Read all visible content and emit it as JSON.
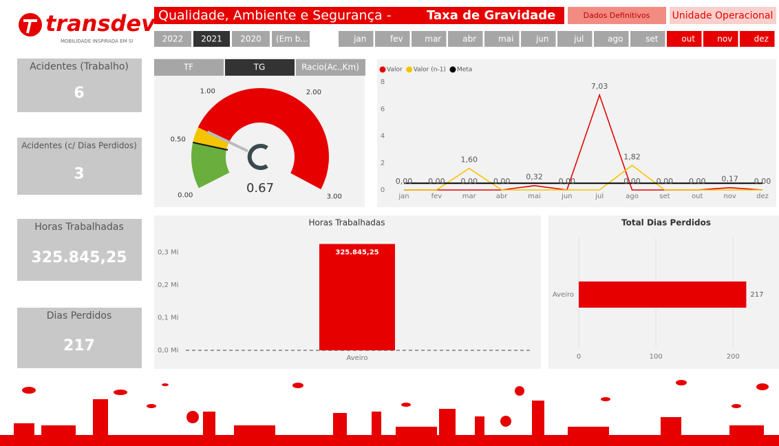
{
  "header": {
    "logo": "transdev",
    "tagline": "MOBILIDADE INSPIRADA EM SI",
    "title": "Qualidade, Ambiente e Segurança -",
    "subtitle": "Taxa de Gravidade",
    "status": "Dados Definitivos",
    "unit": "Unidade Operacional"
  },
  "years": [
    "2022",
    "2021",
    "2020",
    "(Em b..."
  ],
  "months": [
    "jan",
    "fev",
    "mar",
    "abr",
    "mai",
    "jun",
    "jul",
    "ago",
    "set",
    "out",
    "nov",
    "dez"
  ],
  "tabs": [
    "TF",
    "TG",
    "Racio(Ac.,Km)"
  ],
  "cards": [
    {
      "label": "Acidentes (Trabalho)",
      "value": "6"
    },
    {
      "label": "Acidentes (c/ Dias Perdidos)",
      "value": "3"
    },
    {
      "label": "Horas Trabalhadas",
      "value": "325.845,25"
    },
    {
      "label": "Dias Perdidos",
      "value": "217"
    }
  ],
  "chart_data": [
    {
      "type": "gauge",
      "value": 0.67,
      "target": 0.5,
      "range": [
        0,
        3
      ],
      "ticks": [
        {
          "value": 0,
          "label": "0.00"
        },
        {
          "value": 0.5,
          "label": "0.50"
        },
        {
          "value": 1,
          "label": "1.00"
        },
        {
          "value": 2,
          "label": "2.00"
        },
        {
          "value": 3,
          "label": "3.00"
        }
      ],
      "bands": [
        {
          "from": 0,
          "to": 0.5,
          "color": "#6aaf3d"
        },
        {
          "from": 0.5,
          "to": 0.67,
          "color": "#f5c400"
        },
        {
          "from": 0.67,
          "to": 3,
          "color": "#e60000"
        }
      ]
    },
    {
      "type": "line",
      "categories": [
        "jan",
        "fev",
        "mar",
        "abr",
        "mai",
        "jun",
        "jul",
        "ago",
        "set",
        "out",
        "nov",
        "dez"
      ],
      "series": [
        {
          "name": "Valor",
          "color": "#e60000",
          "values": [
            0,
            0,
            0,
            0,
            0.32,
            0,
            7.03,
            0,
            0,
            0,
            0.17,
            0
          ],
          "value_labels": [
            "0,00",
            "0,00",
            "0,00",
            "0,00",
            "0,32",
            "0,00",
            "7,03",
            "0,00",
            "0,00",
            "0,00",
            "0,17",
            "0,00"
          ]
        },
        {
          "name": "Valor (n-1)",
          "color": "#f5c400",
          "values": [
            0,
            0,
            1.6,
            0,
            0,
            0,
            0,
            1.82,
            0,
            0,
            0,
            0
          ],
          "value_labels": [
            null,
            null,
            "1,60",
            null,
            null,
            null,
            null,
            "1,82",
            null,
            null,
            null,
            null
          ]
        },
        {
          "name": "Meta",
          "color": "#000000",
          "values": [
            0.5,
            0.5,
            0.5,
            0.5,
            0.5,
            0.5,
            0.5,
            0.5,
            0.5,
            0.5,
            0.5,
            0.5
          ]
        }
      ],
      "ylim": [
        0,
        8
      ],
      "yticks": [
        0,
        2,
        4,
        6,
        8
      ]
    },
    {
      "type": "bar",
      "title": "Horas Trabalhadas",
      "categories": [
        "Aveiro"
      ],
      "values": [
        325845.25
      ],
      "value_labels": [
        "325.845,25"
      ],
      "color": "#e60000",
      "ylim": [
        0,
        350000
      ],
      "yticks": [
        {
          "value": 0,
          "label": "0,0 Mi"
        },
        {
          "value": 100000,
          "label": "0,1 Mi"
        },
        {
          "value": 200000,
          "label": "0,2 Mi"
        },
        {
          "value": 300000,
          "label": "0,3 Mi"
        }
      ]
    },
    {
      "type": "hbar",
      "title": "Total Dias Perdidos",
      "categories": [
        "Aveiro"
      ],
      "values": [
        217
      ],
      "color": "#e60000",
      "xlim": [
        0,
        230
      ],
      "xticks": [
        0,
        100,
        200
      ]
    }
  ]
}
